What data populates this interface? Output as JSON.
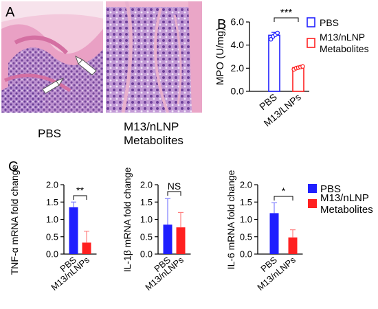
{
  "panels": {
    "a": "A",
    "b": "B",
    "c": "C"
  },
  "histology": {
    "left_caption": "PBS",
    "right_caption_line1": "M13/nLNP",
    "right_caption_line2": "Metabolites"
  },
  "colors": {
    "pbs": "#1f1fff",
    "treat": "#ff2020",
    "tissue_pink": "#e9a0c4",
    "tissue_purple": "#7d4fa6"
  },
  "chart_data": [
    {
      "id": "mpo",
      "type": "bar",
      "style": "open",
      "categories": [
        "PBS",
        "M13/LNPs"
      ],
      "values": [
        4.85,
        2.05
      ],
      "errors": [
        0.25,
        0.12
      ],
      "points": [
        [
          4.5,
          4.75,
          4.9,
          5.05
        ],
        [
          1.9,
          2.0,
          2.05,
          2.1,
          2.15
        ]
      ],
      "ylabel": "MPO (U/mg)",
      "ylim": [
        0,
        6
      ],
      "yticks": [
        "0.0",
        "2.0",
        "4.0",
        "6.0"
      ],
      "sig": "***",
      "legend": [
        "PBS",
        "M13/nLNP",
        "Metabolites"
      ]
    },
    {
      "id": "tnf",
      "type": "bar",
      "categories": [
        "PBS",
        "M13/nLNPs"
      ],
      "values": [
        1.35,
        0.33
      ],
      "errors": [
        0.15,
        0.33
      ],
      "ylabel": "TNF-α mRNA fold change",
      "ylim": [
        0,
        2
      ],
      "yticks": [
        "0.0",
        "0.5",
        "1.0",
        "1.5",
        "2.0"
      ],
      "sig": "**"
    },
    {
      "id": "il1b",
      "type": "bar",
      "categories": [
        "PBS",
        "M13/nLNPs"
      ],
      "values": [
        0.85,
        0.77
      ],
      "errors": [
        0.75,
        0.43
      ],
      "ylabel": "IL-1β mRNA fold change",
      "ylim": [
        0,
        2
      ],
      "yticks": [
        "0.0",
        "0.5",
        "1.0",
        "1.5",
        "2.0"
      ],
      "sig": "NS"
    },
    {
      "id": "il6",
      "type": "bar",
      "categories": [
        "PBS",
        "M13/nLNPs"
      ],
      "values": [
        1.18,
        0.48
      ],
      "errors": [
        0.3,
        0.22
      ],
      "ylabel": "IL-6 mRNA fold change",
      "ylim": [
        0,
        2
      ],
      "yticks": [
        "0.0",
        "0.5",
        "1.0",
        "1.5",
        "2.0"
      ],
      "sig": "*",
      "legend": [
        "PBS",
        "M13/nLNP",
        "Metabolites"
      ]
    }
  ]
}
